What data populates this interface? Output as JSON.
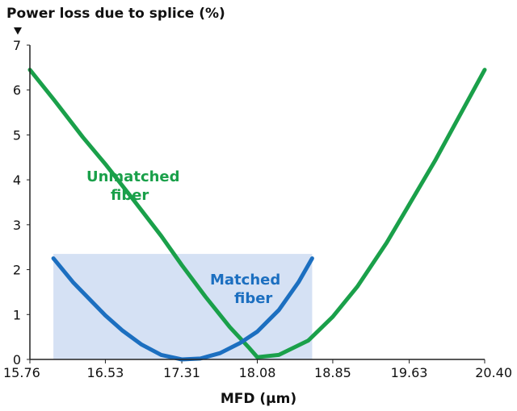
{
  "chart_data": {
    "type": "line",
    "title": "Power loss due to splice (%)",
    "xlabel": "MFD (μm)",
    "ylabel": "",
    "xlim": [
      15.76,
      20.4
    ],
    "ylim": [
      0,
      7
    ],
    "xticks": [
      "15.76",
      "16.53",
      "17.31",
      "18.08",
      "18.85",
      "19.63",
      "20.40"
    ],
    "yticks": [
      "0",
      "1",
      "2",
      "3",
      "4",
      "5",
      "6",
      "7"
    ],
    "grid": false,
    "colors": {
      "unmatched": "#1aa04a",
      "matched": "#1c6fc0",
      "band": "#d5e1f4",
      "axis": "#222222"
    },
    "band": {
      "x": [
        16.0,
        18.64
      ],
      "y": [
        0,
        2.35
      ]
    },
    "series": [
      {
        "name": "Unmatched fiber",
        "x": [
          15.76,
          16.0,
          16.3,
          16.53,
          16.8,
          17.1,
          17.31,
          17.55,
          17.8,
          18.0,
          18.08,
          18.3,
          18.6,
          18.85,
          19.1,
          19.4,
          19.63,
          19.9,
          20.2,
          20.4
        ],
        "y": [
          6.45,
          5.8,
          4.95,
          4.35,
          3.6,
          2.75,
          2.1,
          1.4,
          0.72,
          0.25,
          0.05,
          0.1,
          0.42,
          0.95,
          1.62,
          2.6,
          3.45,
          4.45,
          5.65,
          6.45
        ]
      },
      {
        "name": "Matched fiber",
        "x": [
          16.0,
          16.2,
          16.4,
          16.53,
          16.7,
          16.9,
          17.1,
          17.31,
          17.5,
          17.7,
          17.9,
          18.08,
          18.3,
          18.5,
          18.64
        ],
        "y": [
          2.25,
          1.72,
          1.27,
          0.98,
          0.65,
          0.33,
          0.1,
          0.0,
          0.02,
          0.14,
          0.36,
          0.62,
          1.1,
          1.72,
          2.25
        ]
      }
    ],
    "annotations": [
      {
        "line1": "Unmatched",
        "line2": "fiber",
        "series": "unmatched"
      },
      {
        "line1": "Matched",
        "line2": "fiber",
        "series": "matched"
      }
    ]
  }
}
